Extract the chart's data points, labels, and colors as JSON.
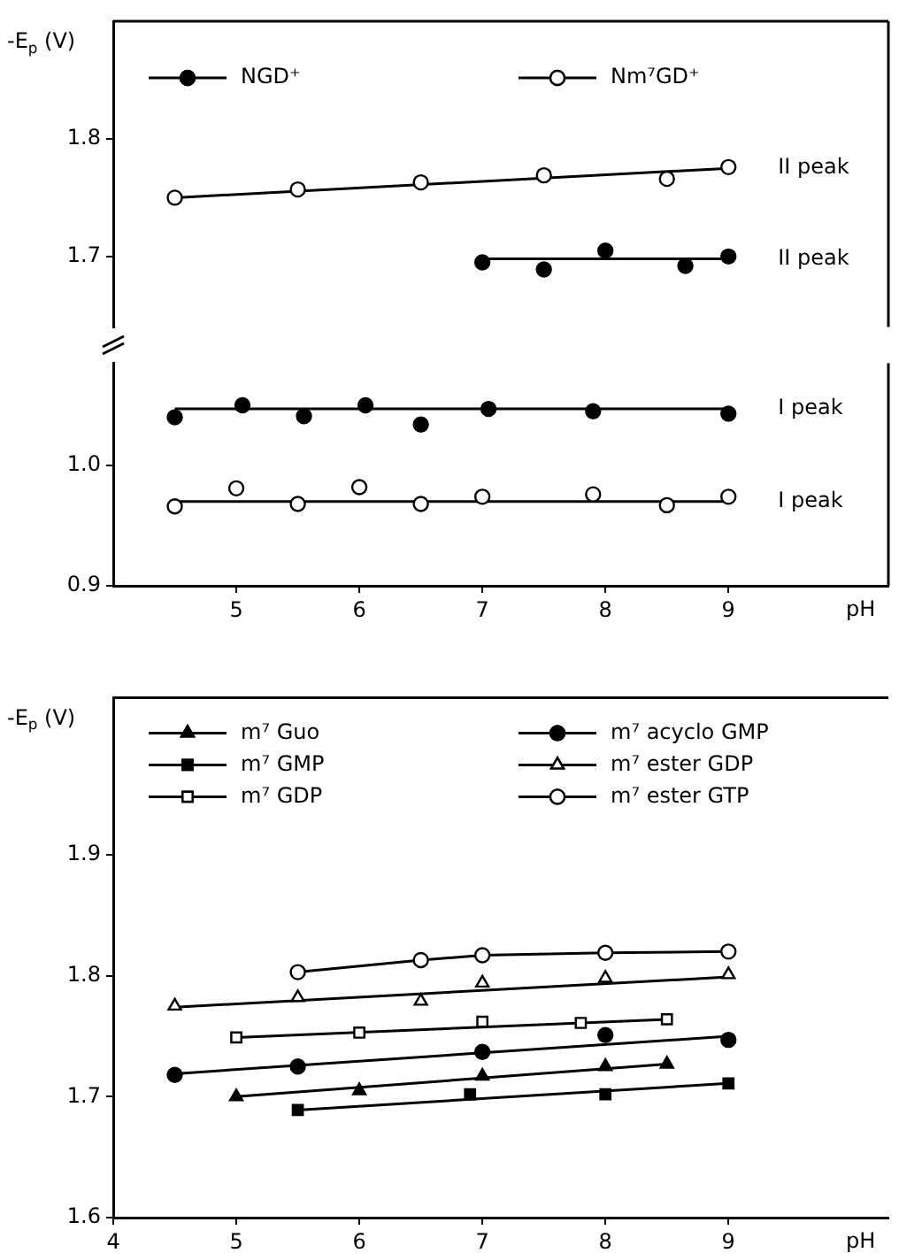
{
  "chart_data": [
    {
      "type": "scatter",
      "ylabel": "-E$_{p}$ (V)",
      "xlim": [
        4,
        10.3
      ],
      "ylim": [
        1.64,
        1.9
      ],
      "yticks": [
        1.7,
        1.8
      ],
      "tick_labels": "y",
      "legend": "top",
      "grid": false,
      "marker": "circle",
      "series": [
        {
          "name": "NGD⁺",
          "color": "#000000",
          "x": [
            7,
            7.5,
            8,
            8.65,
            9
          ],
          "values": [
            1.695,
            1.689,
            1.705,
            1.692,
            1.7
          ]
        },
        {
          "name": "Nm⁷GD⁺",
          "color": "#ffffff",
          "x": [
            4.5,
            5.5,
            6.5,
            7.5,
            8.5,
            9
          ],
          "values": [
            1.75,
            1.757,
            1.763,
            1.769,
            1.766,
            1.776
          ]
        },
        {
          "type": "line",
          "color": "#000000",
          "marker": "none",
          "x": [
            7,
            9
          ],
          "values": [
            1.698,
            1.698
          ]
        },
        {
          "type": "line",
          "color": "#000000",
          "marker": "none",
          "x": [
            4.5,
            9
          ],
          "values": [
            1.75,
            1.775
          ]
        }
      ],
      "annotations": [
        "II peak",
        "II peak"
      ]
    },
    {
      "type": "scatter",
      "xlabel": "pH",
      "xlim": [
        4,
        10.3
      ],
      "xticks": [
        5,
        6,
        7,
        8,
        9
      ],
      "ylim": [
        0.9,
        1.085
      ],
      "yticks": [
        0.9,
        {
          "value": 1,
          "label": "1.0"
        }
      ],
      "grid": false,
      "marker": "circle",
      "series": [
        {
          "color": "#000000",
          "x": [
            4.5,
            5.05,
            5.55,
            6.05,
            6.5,
            7.05,
            7.9,
            9
          ],
          "values": [
            1.04,
            1.05,
            1.041,
            1.05,
            1.034,
            1.047,
            1.045,
            1.043
          ]
        },
        {
          "color": "#ffffff",
          "x": [
            4.5,
            5,
            5.5,
            6,
            6.5,
            7,
            7.9,
            8.5,
            9
          ],
          "values": [
            0.966,
            0.981,
            0.968,
            0.982,
            0.968,
            0.974,
            0.976,
            0.967,
            0.974
          ]
        },
        {
          "type": "line",
          "color": "#000000",
          "marker": "none",
          "x": [
            4.5,
            9
          ],
          "values": [
            1.047,
            1.047
          ]
        },
        {
          "type": "line",
          "color": "#000000",
          "marker": "none",
          "x": [
            4.5,
            9
          ],
          "values": [
            0.97,
            0.97
          ]
        }
      ],
      "annotations": [
        "I peak",
        "I peak"
      ]
    },
    {
      "type": "scatter",
      "ylabel": "-E$_{p}$ (V)",
      "xlabel": "pH",
      "xlim": [
        4,
        10.3
      ],
      "xticks": [
        4,
        5,
        6,
        7,
        8,
        9
      ],
      "ylim": [
        1.6,
        2.03
      ],
      "yticks": [
        1.6,
        1.7,
        1.8,
        1.9
      ],
      "legend": "top",
      "grid": false,
      "series": [
        {
          "name": "m⁷ Guo",
          "color": "#000000",
          "marker": "triangle",
          "x": [
            5,
            6,
            7,
            8,
            8.5
          ],
          "values": [
            1.7,
            1.705,
            1.717,
            1.725,
            1.727
          ]
        },
        {
          "name": "m⁷ GMP",
          "color": "#000000",
          "marker": "square",
          "x": [
            5.5,
            6.9,
            8,
            9
          ],
          "values": [
            1.689,
            1.702,
            1.702,
            1.711
          ]
        },
        {
          "name": "m⁷ GDP",
          "color": "#ffffff",
          "marker": "square",
          "x": [
            5,
            6,
            7,
            7.8,
            8.5
          ],
          "values": [
            1.749,
            1.753,
            1.762,
            1.761,
            1.764
          ]
        },
        {
          "name": "m⁷ acyclo GMP",
          "color": "#000000",
          "marker": "circle",
          "x": [
            4.5,
            5.5,
            7,
            8,
            9
          ],
          "values": [
            1.718,
            1.725,
            1.737,
            1.751,
            1.747
          ]
        },
        {
          "name": "m⁷ ester GDP",
          "color": "#ffffff",
          "marker": "triangle",
          "x": [
            4.5,
            5.5,
            6.5,
            7,
            8,
            9
          ],
          "values": [
            1.775,
            1.782,
            1.779,
            1.794,
            1.798,
            1.801
          ]
        },
        {
          "name": "m⁷ ester GTP",
          "color": "#ffffff",
          "marker": "circle",
          "x": [
            5.5,
            6.5,
            7,
            8,
            9
          ],
          "values": [
            1.803,
            1.813,
            1.817,
            1.819,
            1.82
          ]
        },
        {
          "type": "line",
          "color": "#000000",
          "marker": "none",
          "x": [
            5,
            8.5
          ],
          "values": [
            1.7,
            1.727
          ]
        },
        {
          "type": "line",
          "color": "#000000",
          "marker": "none",
          "x": [
            5.5,
            9
          ],
          "values": [
            1.689,
            1.711
          ]
        },
        {
          "type": "line",
          "color": "#000000",
          "marker": "none",
          "x": [
            5,
            8.5
          ],
          "values": [
            1.749,
            1.764
          ]
        },
        {
          "type": "line",
          "color": "#000000",
          "marker": "none",
          "x": [
            4.5,
            9
          ],
          "values": [
            1.719,
            1.75
          ]
        },
        {
          "type": "line",
          "color": "#000000",
          "marker": "none",
          "x": [
            4.5,
            9
          ],
          "values": [
            1.774,
            1.799
          ]
        },
        {
          "type": "line",
          "color": "#000000",
          "marker": "none",
          "x": [
            5.5,
            6.5,
            7,
            8,
            9
          ],
          "values": [
            1.803,
            1.813,
            1.817,
            1.819,
            1.82
          ]
        }
      ]
    }
  ]
}
